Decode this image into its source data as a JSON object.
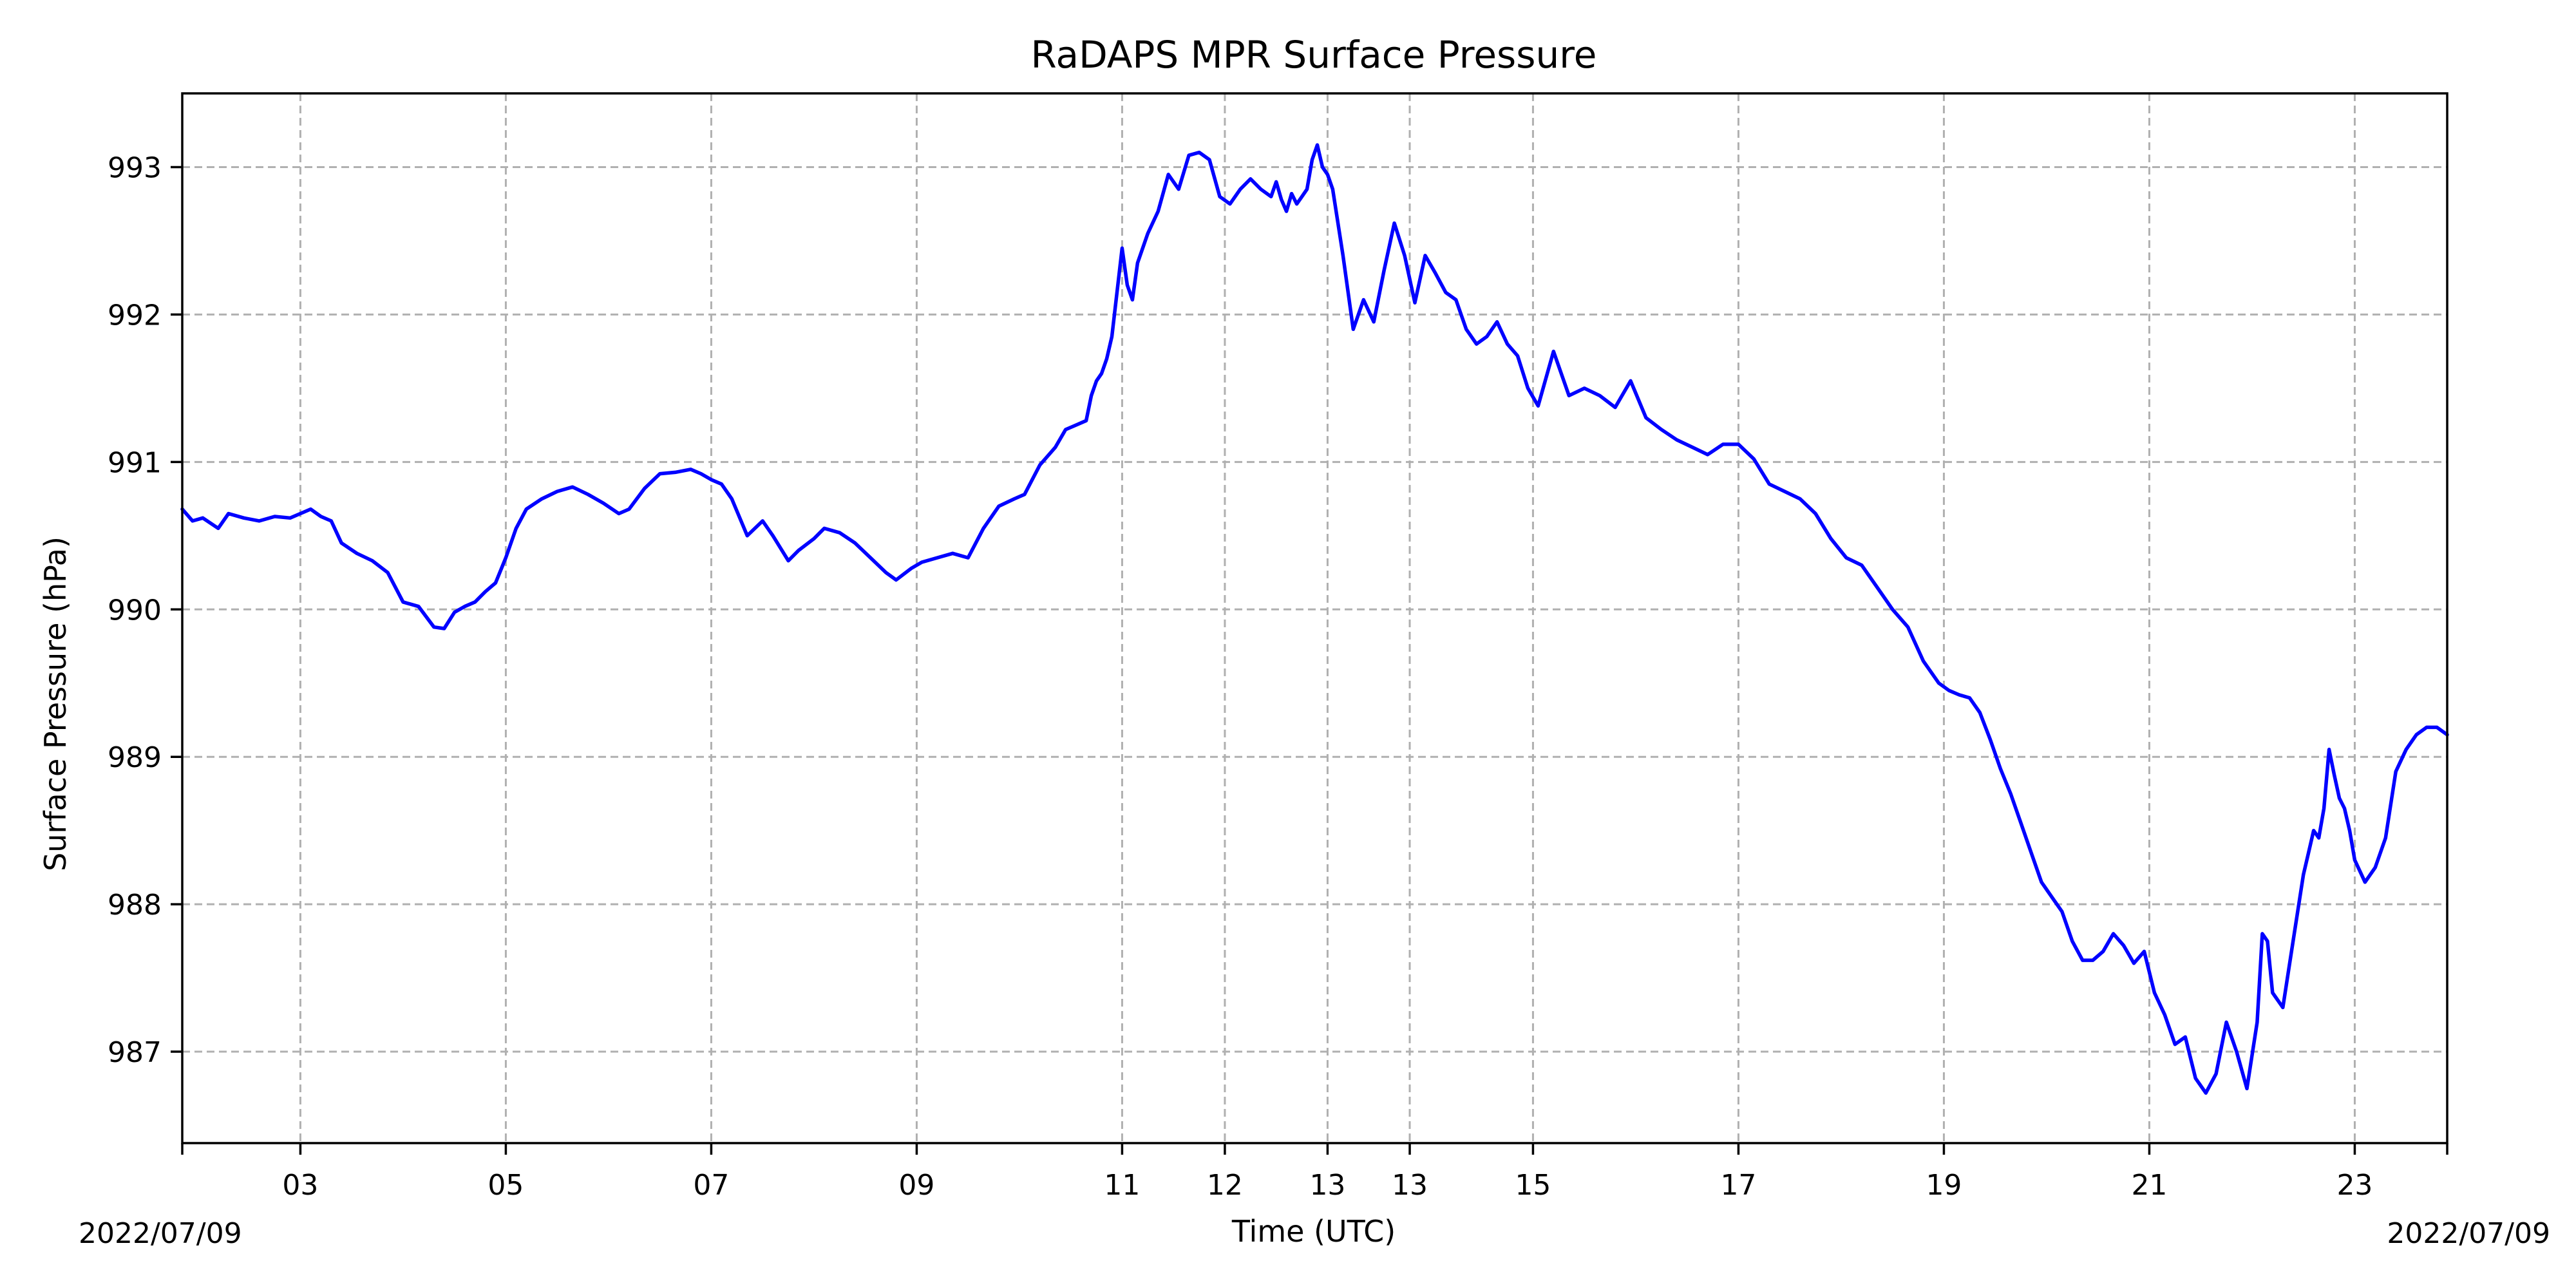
{
  "chart_data": {
    "type": "line",
    "title": "RaDAPS MPR Surface Pressure",
    "xlabel": "Time (UTC)",
    "ylabel": "Surface Pressure (hPa)",
    "xlim": [
      1.85,
      23.9
    ],
    "ylim": [
      986.38,
      993.5
    ],
    "grid": true,
    "line_color": "#0000ff",
    "x_ticks": [
      {
        "x": 3,
        "label": "03"
      },
      {
        "x": 5,
        "label": "05"
      },
      {
        "x": 7,
        "label": "07"
      },
      {
        "x": 9,
        "label": "09"
      },
      {
        "x": 11,
        "label": "11"
      },
      {
        "x": 12,
        "label": "12"
      },
      {
        "x": 13,
        "label": "13"
      },
      {
        "x": 13.8,
        "label": "13"
      },
      {
        "x": 15,
        "label": "15"
      },
      {
        "x": 17,
        "label": "17"
      },
      {
        "x": 19,
        "label": "19"
      },
      {
        "x": 21,
        "label": "21"
      },
      {
        "x": 23,
        "label": "23"
      }
    ],
    "y_ticks": [
      {
        "y": 987,
        "label": "987"
      },
      {
        "y": 988,
        "label": "988"
      },
      {
        "y": 989,
        "label": "989"
      },
      {
        "y": 990,
        "label": "990"
      },
      {
        "y": 991,
        "label": "991"
      },
      {
        "y": 992,
        "label": "992"
      },
      {
        "y": 993,
        "label": "993"
      }
    ],
    "date_left": "2022/07/09",
    "date_right": "2022/07/09",
    "series": [
      {
        "x": [
          1.85,
          1.95,
          2.05,
          2.2,
          2.3,
          2.45,
          2.6,
          2.75,
          2.9,
          3.0,
          3.1,
          3.2,
          3.3,
          3.4,
          3.55,
          3.7,
          3.85,
          4.0,
          4.15,
          4.3,
          4.4,
          4.5,
          4.6,
          4.7,
          4.8,
          4.9,
          5.0,
          5.1,
          5.2,
          5.35,
          5.5,
          5.65,
          5.8,
          5.95,
          6.1,
          6.2,
          6.35,
          6.5,
          6.65,
          6.8,
          6.9,
          7.0,
          7.1,
          7.2,
          7.35,
          7.5,
          7.6,
          7.75,
          7.85,
          8.0,
          8.1,
          8.25,
          8.4,
          8.55,
          8.7,
          8.8,
          8.95,
          9.05,
          9.2,
          9.35,
          9.5,
          9.65,
          9.8,
          9.95,
          10.05,
          10.2,
          10.35,
          10.45,
          10.55,
          10.65,
          10.7,
          10.75,
          10.8,
          10.85,
          10.9,
          11.0,
          11.05,
          11.1,
          11.15,
          11.25,
          11.35,
          11.45,
          11.55,
          11.65,
          11.75,
          11.85,
          11.95,
          12.05,
          12.15,
          12.25,
          12.35,
          12.45,
          12.5,
          12.55,
          12.6,
          12.65,
          12.7,
          12.75,
          12.8,
          12.85,
          12.9,
          12.95,
          13.0,
          13.05,
          13.15,
          13.25,
          13.35,
          13.45,
          13.55,
          13.65,
          13.75,
          13.85,
          13.95,
          14.05,
          14.15,
          14.25,
          14.35,
          14.45,
          14.55,
          14.65,
          14.75,
          14.85,
          14.95,
          15.05,
          15.2,
          15.35,
          15.5,
          15.65,
          15.8,
          15.95,
          16.1,
          16.25,
          16.4,
          16.55,
          16.7,
          16.85,
          17.0,
          17.15,
          17.3,
          17.45,
          17.6,
          17.75,
          17.9,
          18.05,
          18.2,
          18.35,
          18.5,
          18.65,
          18.8,
          18.95,
          19.05,
          19.15,
          19.25,
          19.35,
          19.45,
          19.55,
          19.65,
          19.75,
          19.85,
          19.95,
          20.05,
          20.15,
          20.25,
          20.35,
          20.45,
          20.55,
          20.65,
          20.75,
          20.85,
          20.95,
          21.05,
          21.15,
          21.25,
          21.35,
          21.45,
          21.55,
          21.65,
          21.75,
          21.85,
          21.95,
          22.05,
          22.1,
          22.15,
          22.2,
          22.3,
          22.4,
          22.5,
          22.55,
          22.6,
          22.65,
          22.7,
          22.75,
          22.8,
          22.85,
          22.9,
          22.95,
          23.0,
          23.1,
          23.2,
          23.3,
          23.4,
          23.5,
          23.6,
          23.7,
          23.8,
          23.9
        ],
        "y": [
          990.68,
          990.6,
          990.62,
          990.55,
          990.65,
          990.62,
          990.6,
          990.63,
          990.62,
          990.65,
          990.68,
          990.63,
          990.6,
          990.45,
          990.38,
          990.33,
          990.25,
          990.05,
          990.02,
          989.88,
          989.87,
          989.98,
          990.02,
          990.05,
          990.12,
          990.18,
          990.35,
          990.55,
          990.68,
          990.75,
          990.8,
          990.83,
          990.78,
          990.72,
          990.65,
          990.68,
          990.82,
          990.92,
          990.93,
          990.95,
          990.92,
          990.88,
          990.85,
          990.75,
          990.5,
          990.6,
          990.5,
          990.33,
          990.4,
          990.48,
          990.55,
          990.52,
          990.45,
          990.35,
          990.25,
          990.2,
          990.28,
          990.32,
          990.35,
          990.38,
          990.35,
          990.55,
          990.7,
          990.75,
          990.78,
          990.98,
          991.1,
          991.22,
          991.25,
          991.28,
          991.45,
          991.55,
          991.6,
          991.7,
          991.85,
          992.45,
          992.2,
          992.1,
          992.35,
          992.55,
          992.7,
          992.95,
          992.85,
          993.08,
          993.1,
          993.05,
          992.8,
          992.75,
          992.85,
          992.92,
          992.85,
          992.8,
          992.9,
          992.78,
          992.7,
          992.82,
          992.75,
          992.8,
          992.85,
          993.05,
          993.15,
          993.0,
          992.95,
          992.85,
          992.4,
          991.9,
          992.1,
          991.95,
          992.3,
          992.62,
          992.4,
          992.08,
          992.4,
          992.28,
          992.15,
          992.1,
          991.9,
          991.8,
          991.85,
          991.95,
          991.8,
          991.72,
          991.5,
          991.38,
          991.75,
          991.45,
          991.5,
          991.45,
          991.37,
          991.55,
          991.3,
          991.22,
          991.15,
          991.1,
          991.05,
          991.12,
          991.12,
          991.02,
          990.85,
          990.8,
          990.75,
          990.65,
          990.48,
          990.35,
          990.3,
          990.15,
          990.0,
          989.88,
          989.65,
          989.5,
          989.45,
          989.42,
          989.4,
          989.3,
          989.12,
          988.92,
          988.75,
          988.55,
          988.35,
          988.15,
          988.05,
          987.95,
          987.75,
          987.62,
          987.62,
          987.68,
          987.8,
          987.72,
          987.6,
          987.68,
          987.4,
          987.25,
          987.05,
          987.1,
          986.82,
          986.72,
          986.85,
          987.2,
          987.0,
          986.75,
          987.2,
          987.8,
          987.75,
          987.4,
          987.3,
          987.75,
          988.2,
          988.35,
          988.5,
          988.45,
          988.65,
          989.05,
          988.88,
          988.72,
          988.65,
          988.5,
          988.3,
          988.15,
          988.25,
          988.45,
          988.9,
          989.05,
          989.15,
          989.2,
          989.2,
          989.15
        ]
      }
    ]
  }
}
